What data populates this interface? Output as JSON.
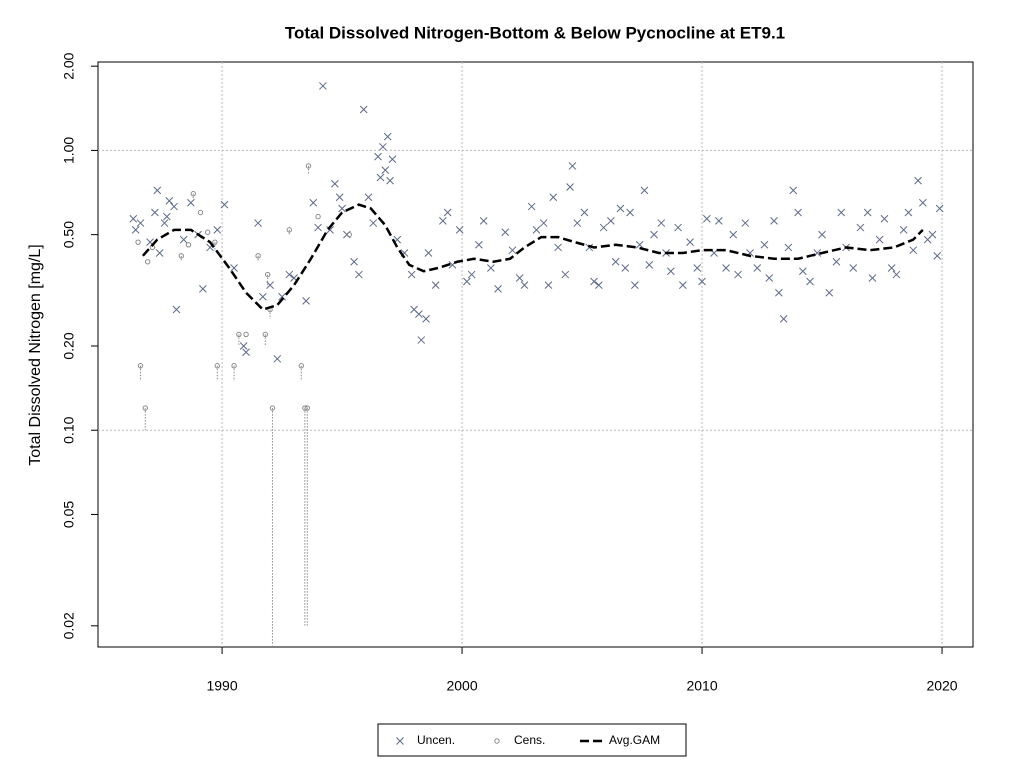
{
  "chart_data": {
    "type": "scatter",
    "title": "Total Dissolved Nitrogen-Bottom & Below Pycnocline at ET9.1",
    "y_label": "Total Dissolved Nitrogen [mg/L]",
    "ylog": true,
    "xlim": [
      1984.83,
      2021.29
    ],
    "ylim": [
      0.0168,
      2.07
    ],
    "xticks": [
      1990,
      2000,
      2010,
      2020
    ],
    "yticks": [
      {
        "value": 2,
        "label": "2.00"
      },
      {
        "value": 1,
        "label": "1.00"
      },
      {
        "value": 0.5,
        "label": "0.50"
      },
      {
        "value": 0.2,
        "label": "0.20"
      },
      {
        "value": 0.1,
        "label": "0.10"
      },
      {
        "value": 0.05,
        "label": "0.05"
      },
      {
        "value": 0.02,
        "label": "0.02"
      }
    ],
    "xgrid": true,
    "ygrid": [
      1,
      0.1
    ],
    "legend": "bottom",
    "series": [
      {
        "name": "Uncen.",
        "kind": "cross",
        "color": "#5d6b8a",
        "x": [
          1986.3,
          1986.4,
          1986.6,
          1987.0,
          1987.2,
          1987.3,
          1987.4,
          1987.6,
          1987.7,
          1987.8,
          1988.0,
          1988.1,
          1988.4,
          1988.7,
          1989.0,
          1989.2,
          1989.5,
          1989.8,
          1990.1,
          1990.5,
          1990.9,
          1991.0,
          1991.5,
          1991.7,
          1992.0,
          1992.3,
          1992.5,
          1992.8,
          1993.0,
          1993.5,
          1993.8,
          1994.0,
          1994.2,
          1994.5,
          1994.7,
          1994.9,
          1995.0,
          1995.2,
          1995.5,
          1995.7,
          1995.9,
          1996.1,
          1996.3,
          1996.5,
          1996.6,
          1996.7,
          1996.8,
          1996.9,
          1997.0,
          1997.1,
          1997.3,
          1997.6,
          1997.9,
          1998.0,
          1998.2,
          1998.3,
          1998.5,
          1998.6,
          1998.9,
          1999.2,
          1999.4,
          1999.6,
          1999.9,
          2000.2,
          2000.4,
          2000.7,
          2000.9,
          2001.2,
          2001.5,
          2001.8,
          2002.1,
          2002.4,
          2002.6,
          2002.9,
          2003.1,
          2003.4,
          2003.6,
          2003.8,
          2004.0,
          2004.3,
          2004.5,
          2004.6,
          2004.8,
          2005.1,
          2005.3,
          2005.5,
          2005.7,
          2005.9,
          2006.2,
          2006.4,
          2006.6,
          2006.8,
          2007.0,
          2007.2,
          2007.4,
          2007.6,
          2007.8,
          2008.0,
          2008.3,
          2008.5,
          2008.7,
          2009.0,
          2009.2,
          2009.5,
          2009.8,
          2010.0,
          2010.2,
          2010.5,
          2010.7,
          2011.0,
          2011.3,
          2011.5,
          2011.8,
          2012.0,
          2012.3,
          2012.6,
          2012.8,
          2013.0,
          2013.2,
          2013.4,
          2013.6,
          2013.8,
          2014.0,
          2014.2,
          2014.5,
          2014.8,
          2015.0,
          2015.3,
          2015.6,
          2015.8,
          2016.0,
          2016.3,
          2016.6,
          2016.9,
          2017.1,
          2017.4,
          2017.6,
          2017.9,
          2018.1,
          2018.4,
          2018.6,
          2018.8,
          2019.0,
          2019.2,
          2019.4,
          2019.6,
          2019.8,
          2019.9
        ],
        "values": [
          0.57,
          0.52,
          0.55,
          0.47,
          0.6,
          0.72,
          0.43,
          0.55,
          0.58,
          0.66,
          0.63,
          0.27,
          0.48,
          0.65,
          0.5,
          0.32,
          0.45,
          0.52,
          0.64,
          0.38,
          0.2,
          0.19,
          0.55,
          0.3,
          0.33,
          0.18,
          0.3,
          0.36,
          0.35,
          0.29,
          0.65,
          0.53,
          1.7,
          0.52,
          0.76,
          0.68,
          0.62,
          0.5,
          0.4,
          0.36,
          1.4,
          0.68,
          0.55,
          0.95,
          0.8,
          1.03,
          0.85,
          1.12,
          0.78,
          0.93,
          0.48,
          0.43,
          0.36,
          0.27,
          0.26,
          0.21,
          0.25,
          0.43,
          0.33,
          0.56,
          0.6,
          0.39,
          0.52,
          0.34,
          0.36,
          0.46,
          0.56,
          0.38,
          0.32,
          0.51,
          0.44,
          0.35,
          0.33,
          0.63,
          0.52,
          0.55,
          0.33,
          0.68,
          0.45,
          0.36,
          0.74,
          0.88,
          0.55,
          0.6,
          0.45,
          0.34,
          0.33,
          0.53,
          0.56,
          0.4,
          0.62,
          0.38,
          0.6,
          0.33,
          0.46,
          0.72,
          0.39,
          0.5,
          0.55,
          0.43,
          0.37,
          0.53,
          0.33,
          0.47,
          0.38,
          0.34,
          0.57,
          0.43,
          0.56,
          0.38,
          0.5,
          0.36,
          0.55,
          0.43,
          0.38,
          0.46,
          0.35,
          0.56,
          0.31,
          0.25,
          0.45,
          0.72,
          0.6,
          0.37,
          0.34,
          0.43,
          0.5,
          0.31,
          0.4,
          0.6,
          0.45,
          0.38,
          0.53,
          0.6,
          0.35,
          0.48,
          0.57,
          0.38,
          0.36,
          0.52,
          0.6,
          0.44,
          0.78,
          0.65,
          0.48,
          0.5,
          0.42,
          0.62
        ]
      },
      {
        "name": "Cens.",
        "kind": "circle",
        "color": "#8a8a8a",
        "x": [
          1986.6,
          1986.8,
          1986.5,
          1986.9,
          1987.1,
          1988.3,
          1988.6,
          1988.8,
          1989.1,
          1989.4,
          1989.7,
          1989.8,
          1990.5,
          1990.7,
          1991.0,
          1991.5,
          1991.8,
          1991.9,
          1992.0,
          1992.1,
          1992.8,
          1993.3,
          1993.45,
          1993.55,
          1993.6,
          1994.0,
          1995.3
        ],
        "values": [
          0.17,
          0.12,
          0.47,
          0.4,
          0.45,
          0.42,
          0.46,
          0.7,
          0.6,
          0.51,
          0.47,
          0.17,
          0.17,
          0.22,
          0.22,
          0.42,
          0.22,
          0.36,
          0.27,
          0.12,
          0.52,
          0.17,
          0.12,
          0.12,
          0.88,
          0.58,
          0.5
        ],
        "lower": [
          0.15,
          0.1,
          null,
          null,
          null,
          0.4,
          null,
          0.67,
          null,
          null,
          0.44,
          0.15,
          0.15,
          0.2,
          null,
          0.4,
          0.2,
          0.32,
          0.25,
          0.017,
          0.5,
          0.15,
          0.02,
          0.02,
          0.82,
          null,
          null
        ]
      },
      {
        "name": "Avg.GAM",
        "kind": "line",
        "color": "#000000",
        "x": [
          1986.7,
          1987.3,
          1988.0,
          1988.7,
          1989.5,
          1990.3,
          1991.0,
          1991.7,
          1992.3,
          1993.0,
          1993.7,
          1994.4,
          1995.0,
          1995.7,
          1996.2,
          1996.8,
          1997.3,
          1997.8,
          1998.4,
          1999.0,
          1999.8,
          2000.5,
          2001.3,
          2002.0,
          2002.6,
          2003.3,
          2004.0,
          2004.7,
          2005.5,
          2006.4,
          2007.3,
          2008.2,
          2009.2,
          2010.0,
          2011.0,
          2012.0,
          2013.0,
          2014.0,
          2015.0,
          2016.0,
          2017.0,
          2018.0,
          2018.8,
          2019.2
        ],
        "values": [
          0.42,
          0.48,
          0.52,
          0.52,
          0.47,
          0.38,
          0.31,
          0.27,
          0.28,
          0.33,
          0.41,
          0.52,
          0.6,
          0.64,
          0.62,
          0.54,
          0.45,
          0.39,
          0.37,
          0.38,
          0.4,
          0.41,
          0.4,
          0.41,
          0.45,
          0.49,
          0.49,
          0.47,
          0.45,
          0.46,
          0.45,
          0.43,
          0.43,
          0.44,
          0.44,
          0.42,
          0.41,
          0.41,
          0.43,
          0.45,
          0.44,
          0.45,
          0.48,
          0.52
        ]
      }
    ]
  }
}
